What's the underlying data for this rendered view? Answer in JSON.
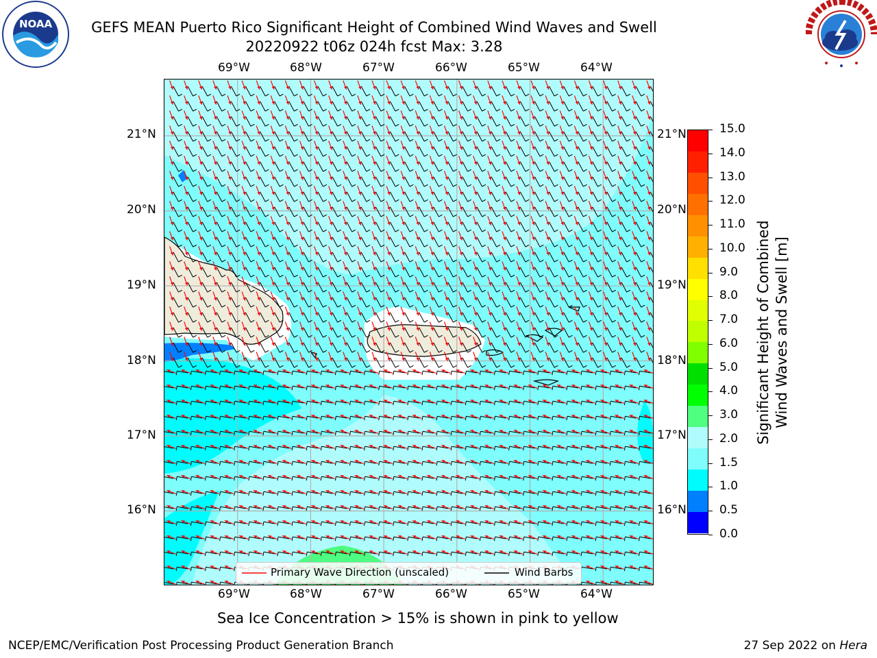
{
  "header": {
    "title_line1": "GEFS MEAN Puerto Rico Significant Height of Combined Wind Waves and Swell",
    "title_line2": "20220922 t06z 024h fcst   Max: 3.28"
  },
  "logos": {
    "noaa_text": "NOAA",
    "noaa_ring_text": "NATIONAL OCEANIC AND ATMOSPHERIC ADMINISTRATION",
    "noaa_ring_bottom": "U.S. DEPARTMENT OF COMMERCE",
    "nws_ring_text": "NATIONAL WEATHER SERVICE"
  },
  "map": {
    "lon_labels": [
      "69°W",
      "68°W",
      "67°W",
      "66°W",
      "65°W",
      "64°W"
    ],
    "lat_labels": [
      "21°N",
      "20°N",
      "19°N",
      "18°N",
      "17°N",
      "16°N"
    ],
    "lon_range": [
      -70.0,
      -63.3
    ],
    "lat_range": [
      15.0,
      21.75
    ],
    "colors": {
      "ocean_1_5_2_0": "#7ffcfc",
      "ocean_2_0_3_0": "#b0fcfc",
      "ocean_1_0_1_5": "#00fcfc",
      "ocean_0_5_1_0": "#0080ff",
      "ocean_3_0_4_0": "#4dfc80",
      "land": "#efecdc",
      "wave_arrow": "#ff0000",
      "wind_barb": "#000000"
    }
  },
  "legend": {
    "wave_label": "Primary Wave Direction (unscaled)",
    "barb_label": "Wind Barbs"
  },
  "colorbar": {
    "label_line1": "Significant Height of Combined",
    "label_line2": "Wind Waves and Swell [m]",
    "ticks": [
      "15.0",
      "14.0",
      "13.0",
      "12.0",
      "11.0",
      "10.0",
      "9.0",
      "8.0",
      "7.0",
      "6.0",
      "5.0",
      "4.0",
      "3.0",
      "2.0",
      "1.5",
      "1.0",
      "0.5",
      "0.0"
    ],
    "colors": [
      "#ff0000",
      "#ff2000",
      "#ff5000",
      "#ff7000",
      "#ff9000",
      "#ffb000",
      "#ffe000",
      "#ffff00",
      "#e0ff00",
      "#c0ff00",
      "#80ff00",
      "#00e000",
      "#00ff00",
      "#50ff80",
      "#b0fcfc",
      "#7ffcfc",
      "#00fcfc",
      "#0080ff",
      "#0000ff"
    ]
  },
  "note": "Sea Ice Concentration > 15% is shown in pink to yellow",
  "footer": {
    "left": "NCEP/EMC/Verification Post Processing Product Generation Branch",
    "right_prefix": "27 Sep 2022 on ",
    "right_host": "Hera"
  }
}
